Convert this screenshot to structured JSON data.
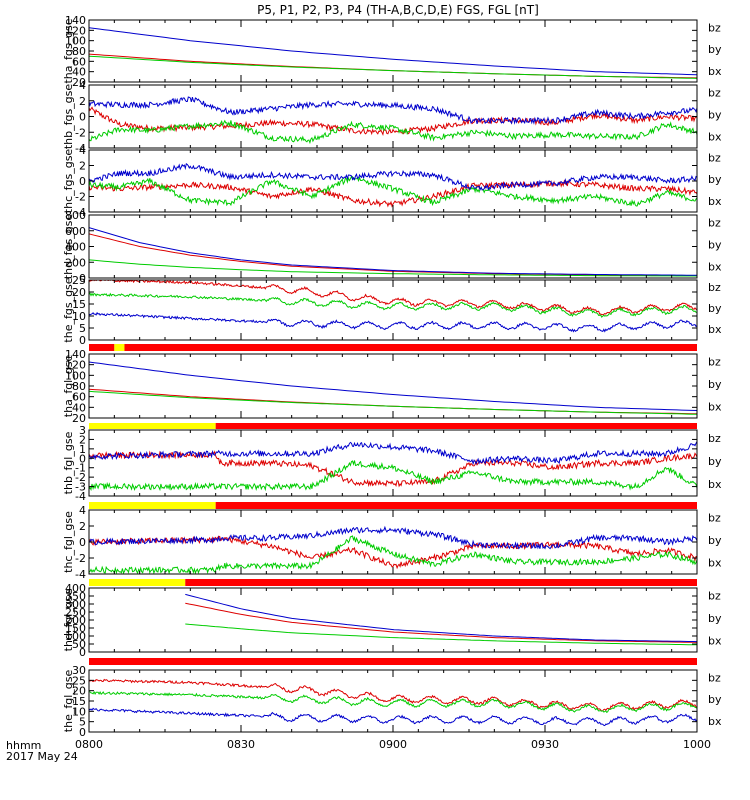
{
  "title": "P5, P1, P2, P3, P4 (TH-A,B,C,D,E) FGS, FGL [nT]",
  "time_axis": {
    "label_line1": "hhmm",
    "label_line2": "2017 May 24",
    "ticks": [
      "0800",
      "0830",
      "0900",
      "0930",
      "1000"
    ],
    "range_minutes": [
      0,
      120
    ]
  },
  "component_labels": [
    "bz",
    "by",
    "bx"
  ],
  "colors": {
    "bz": "#dd0000",
    "by": "#00cc00",
    "bx": "#0000cc",
    "bar_red": "#ff0000",
    "bar_yellow": "#ffff00",
    "bar_black": "#000000"
  },
  "status_bars": [
    {
      "after_panel": 4,
      "segments": [
        {
          "from": 0,
          "to": 5,
          "color": "red"
        },
        {
          "from": 5,
          "to": 7,
          "color": "yellow"
        },
        {
          "from": 7,
          "to": 120,
          "color": "red"
        }
      ]
    },
    {
      "after_panel": 5,
      "segments": [
        {
          "from": 0,
          "to": 25,
          "color": "yellow"
        },
        {
          "from": 25,
          "to": 120,
          "color": "red"
        }
      ]
    },
    {
      "after_panel": 6,
      "segments": [
        {
          "from": 0,
          "to": 25,
          "color": "yellow"
        },
        {
          "from": 25,
          "to": 120,
          "color": "red"
        }
      ]
    },
    {
      "after_panel": 7,
      "segments": [
        {
          "from": 0,
          "to": 19,
          "color": "yellow"
        },
        {
          "from": 19,
          "to": 120,
          "color": "red"
        }
      ]
    },
    {
      "after_panel": 8,
      "segments": [
        {
          "from": 0,
          "to": 120,
          "color": "red"
        }
      ]
    }
  ],
  "chart_data": [
    {
      "type": "line",
      "ylabel": "tha_fgs_gse",
      "ylim": [
        20,
        140
      ],
      "yticks": [
        20,
        40,
        60,
        80,
        100,
        120,
        140
      ],
      "style": "smooth",
      "series": [
        {
          "name": "bz",
          "x": [
            0,
            20,
            40,
            60,
            80,
            100,
            120
          ],
          "values": [
            74,
            60,
            50,
            42,
            36,
            31,
            28
          ]
        },
        {
          "name": "by",
          "x": [
            0,
            20,
            40,
            60,
            80,
            100,
            120
          ],
          "values": [
            70,
            58,
            49,
            42,
            36,
            31,
            27
          ]
        },
        {
          "name": "bx",
          "x": [
            0,
            20,
            40,
            60,
            80,
            100,
            120
          ],
          "values": [
            125,
            100,
            80,
            64,
            51,
            40,
            34
          ]
        }
      ]
    },
    {
      "type": "line",
      "ylabel": "thb_fgs_gse",
      "ylim": [
        -4,
        4
      ],
      "yticks": [
        -4,
        -2,
        0,
        2,
        4
      ],
      "style": "noisy",
      "series": [
        {
          "name": "bz",
          "x": [
            0,
            6,
            12,
            20,
            28,
            36,
            44,
            52,
            60,
            68,
            76,
            84,
            92,
            100,
            108,
            114,
            120
          ],
          "values": [
            1.0,
            -1.0,
            -1.5,
            -1.4,
            -1.2,
            -0.8,
            -1.0,
            -1.8,
            -2.0,
            -1.5,
            -0.5,
            -0.5,
            -0.8,
            0.2,
            -0.5,
            0.0,
            -0.3
          ]
        },
        {
          "name": "by",
          "x": [
            0,
            6,
            12,
            20,
            28,
            36,
            44,
            52,
            60,
            68,
            76,
            84,
            92,
            100,
            108,
            114,
            120
          ],
          "values": [
            -3.0,
            -1.6,
            -1.8,
            -1.2,
            -0.8,
            -2.7,
            -3.0,
            -1.0,
            -1.5,
            -2.7,
            -2.0,
            -2.5,
            -2.3,
            -2.5,
            -2.6,
            -1.0,
            -2.0
          ]
        },
        {
          "name": "bx",
          "x": [
            0,
            6,
            12,
            20,
            28,
            36,
            44,
            52,
            60,
            68,
            76,
            84,
            92,
            100,
            108,
            114,
            120
          ],
          "values": [
            1.6,
            1.5,
            1.5,
            2.2,
            0.5,
            1.0,
            1.5,
            1.6,
            1.4,
            1.0,
            -0.6,
            -0.5,
            -0.5,
            0.5,
            0.0,
            0.5,
            0.8
          ]
        }
      ]
    },
    {
      "type": "line",
      "ylabel": "thc_fgs_gse",
      "ylim": [
        -4,
        4
      ],
      "yticks": [
        -4,
        -2,
        0,
        2,
        4
      ],
      "style": "noisy",
      "series": [
        {
          "name": "bz",
          "x": [
            0,
            6,
            12,
            20,
            28,
            36,
            44,
            52,
            60,
            68,
            76,
            84,
            92,
            100,
            108,
            114,
            120
          ],
          "values": [
            -0.8,
            -1.0,
            -0.8,
            -0.5,
            -0.8,
            -2.0,
            -1.0,
            -2.5,
            -3.0,
            -2.0,
            -0.6,
            -0.5,
            -0.3,
            -0.5,
            -1.0,
            -1.0,
            -1.5
          ]
        },
        {
          "name": "by",
          "x": [
            0,
            6,
            12,
            20,
            28,
            36,
            44,
            52,
            60,
            68,
            76,
            84,
            92,
            100,
            108,
            114,
            120
          ],
          "values": [
            -0.5,
            -0.8,
            0.0,
            -2.5,
            -2.8,
            0.0,
            -2.0,
            0.5,
            -1.0,
            -2.8,
            -1.0,
            -2.0,
            -2.5,
            -2.0,
            -3.0,
            -1.5,
            -2.5
          ]
        },
        {
          "name": "bx",
          "x": [
            0,
            6,
            12,
            20,
            28,
            36,
            44,
            52,
            60,
            68,
            76,
            84,
            92,
            100,
            108,
            114,
            120
          ],
          "values": [
            0.0,
            1.0,
            1.0,
            2.0,
            0.5,
            0.8,
            0.5,
            0.5,
            1.0,
            0.8,
            -1.0,
            -0.5,
            -0.3,
            0.5,
            0.5,
            0.0,
            0.3
          ]
        }
      ]
    },
    {
      "type": "line",
      "ylabel": "thd_fgs_gse",
      "ylim": [
        0,
        800
      ],
      "yticks": [
        0,
        200,
        400,
        600,
        800
      ],
      "style": "smooth",
      "series": [
        {
          "name": "bz",
          "x": [
            0,
            10,
            20,
            30,
            40,
            60,
            80,
            100,
            120
          ],
          "values": [
            560,
            400,
            290,
            210,
            150,
            85,
            55,
            40,
            30
          ]
        },
        {
          "name": "by",
          "x": [
            0,
            10,
            20,
            30,
            40,
            60,
            80,
            100,
            120
          ],
          "values": [
            230,
            175,
            135,
            105,
            80,
            55,
            40,
            30,
            25
          ]
        },
        {
          "name": "bx",
          "x": [
            0,
            10,
            20,
            30,
            40,
            60,
            80,
            100,
            120
          ],
          "values": [
            640,
            450,
            320,
            230,
            165,
            95,
            60,
            45,
            35
          ]
        }
      ]
    },
    {
      "type": "line",
      "ylabel": "the_fgs_gse",
      "ylim": [
        0,
        25
      ],
      "yticks": [
        0,
        5,
        10,
        15,
        20,
        25
      ],
      "style": "wavy",
      "series": [
        {
          "name": "bz",
          "x": [
            0,
            20,
            40,
            60,
            80,
            100,
            120
          ],
          "values": [
            25,
            24,
            21,
            16,
            15,
            12,
            14
          ]
        },
        {
          "name": "by",
          "x": [
            0,
            20,
            40,
            60,
            80,
            100,
            120
          ],
          "values": [
            19,
            18,
            16,
            14,
            14,
            11,
            13
          ]
        },
        {
          "name": "bx",
          "x": [
            0,
            20,
            40,
            60,
            80,
            100,
            120
          ],
          "values": [
            11,
            9,
            7,
            6,
            6,
            5,
            7
          ]
        }
      ]
    },
    {
      "type": "line",
      "ylabel": "tha_fgl_gse",
      "ylim": [
        20,
        140
      ],
      "yticks": [
        20,
        40,
        60,
        80,
        100,
        120,
        140
      ],
      "style": "smooth",
      "series": [
        {
          "name": "bz",
          "x": [
            0,
            20,
            40,
            60,
            80,
            100,
            120
          ],
          "values": [
            74,
            60,
            50,
            42,
            36,
            31,
            28
          ]
        },
        {
          "name": "by",
          "x": [
            0,
            20,
            40,
            60,
            80,
            100,
            120
          ],
          "values": [
            70,
            58,
            49,
            42,
            36,
            31,
            27
          ]
        },
        {
          "name": "bx",
          "x": [
            0,
            20,
            40,
            60,
            80,
            100,
            120
          ],
          "values": [
            125,
            100,
            80,
            64,
            51,
            40,
            34
          ]
        }
      ]
    },
    {
      "type": "line",
      "ylabel": "thb_fgl_gse",
      "ylim": [
        -4,
        3
      ],
      "yticks": [
        -4,
        -3,
        -2,
        -1,
        0,
        1,
        2,
        3
      ],
      "style": "noisy",
      "series": [
        {
          "name": "bz",
          "x": [
            0,
            25,
            26,
            36,
            44,
            52,
            60,
            68,
            76,
            84,
            92,
            100,
            108,
            114,
            120
          ],
          "values": [
            0.3,
            0.4,
            -0.5,
            -0.5,
            -0.8,
            -2.5,
            -2.7,
            -2.5,
            -0.5,
            -0.5,
            -1.0,
            -0.5,
            -0.5,
            0.0,
            0.3
          ]
        },
        {
          "name": "by",
          "x": [
            0,
            25,
            26,
            36,
            44,
            52,
            60,
            68,
            76,
            84,
            92,
            100,
            108,
            114,
            120
          ],
          "values": [
            -3.0,
            -3.0,
            -3.0,
            -3.0,
            -3.0,
            -0.5,
            -1.0,
            -2.5,
            -1.5,
            -2.5,
            -2.5,
            -2.5,
            -3.0,
            -1.0,
            -3.0
          ]
        },
        {
          "name": "bx",
          "x": [
            0,
            25,
            26,
            36,
            44,
            52,
            60,
            68,
            76,
            84,
            92,
            100,
            108,
            114,
            120
          ],
          "values": [
            0.2,
            0.5,
            0.5,
            0.5,
            0.5,
            1.5,
            1.2,
            0.8,
            -0.3,
            0.0,
            -0.3,
            0.5,
            0.5,
            0.5,
            1.5
          ]
        }
      ]
    },
    {
      "type": "line",
      "ylabel": "thc_fgl_gse",
      "ylim": [
        -4,
        4
      ],
      "yticks": [
        -4,
        -2,
        0,
        2,
        4
      ],
      "style": "noisy",
      "series": [
        {
          "name": "bz",
          "x": [
            0,
            25,
            26,
            36,
            44,
            52,
            60,
            68,
            76,
            84,
            92,
            100,
            108,
            114,
            120
          ],
          "values": [
            0.0,
            0.3,
            0.5,
            -0.5,
            -2.0,
            -1.0,
            -3.0,
            -2.0,
            -0.5,
            -0.5,
            -0.3,
            -0.5,
            -1.5,
            -1.0,
            -2.0
          ]
        },
        {
          "name": "by",
          "x": [
            0,
            25,
            26,
            36,
            44,
            52,
            60,
            68,
            76,
            84,
            92,
            100,
            108,
            114,
            120
          ],
          "values": [
            -3.5,
            -3.5,
            -3.0,
            -3.0,
            -3.0,
            0.5,
            -1.5,
            -2.8,
            -1.5,
            -2.5,
            -2.5,
            -2.5,
            -2.0,
            -1.5,
            -2.5
          ]
        },
        {
          "name": "bx",
          "x": [
            0,
            25,
            26,
            36,
            44,
            52,
            60,
            68,
            76,
            84,
            92,
            100,
            108,
            114,
            120
          ],
          "values": [
            0.0,
            0.3,
            0.5,
            0.5,
            0.8,
            1.5,
            1.5,
            1.0,
            -0.3,
            -0.5,
            -0.5,
            0.5,
            0.5,
            0.0,
            0.5
          ]
        }
      ]
    },
    {
      "type": "line",
      "ylabel": "thd_fgl_gse",
      "ylim": [
        0,
        400
      ],
      "yticks": [
        0,
        50,
        100,
        150,
        200,
        250,
        300,
        350,
        400
      ],
      "style": "smooth",
      "series": [
        {
          "name": "bz",
          "x": [
            19,
            30,
            40,
            60,
            80,
            100,
            120
          ],
          "values": [
            305,
            235,
            185,
            125,
            90,
            70,
            60
          ]
        },
        {
          "name": "by",
          "x": [
            19,
            30,
            40,
            60,
            80,
            100,
            120
          ],
          "values": [
            175,
            145,
            120,
            90,
            70,
            55,
            45
          ]
        },
        {
          "name": "bx",
          "x": [
            19,
            30,
            40,
            60,
            80,
            100,
            120
          ],
          "values": [
            360,
            270,
            210,
            140,
            100,
            75,
            65
          ]
        }
      ]
    },
    {
      "type": "line",
      "ylabel": "the_fgl_gse",
      "ylim": [
        0,
        30
      ],
      "yticks": [
        0,
        5,
        10,
        15,
        20,
        25,
        30
      ],
      "style": "wavy",
      "series": [
        {
          "name": "bz",
          "x": [
            0,
            20,
            40,
            60,
            80,
            100,
            120
          ],
          "values": [
            25,
            24,
            21,
            16,
            15,
            12,
            14
          ]
        },
        {
          "name": "by",
          "x": [
            0,
            20,
            40,
            60,
            80,
            100,
            120
          ],
          "values": [
            19,
            18,
            16,
            14,
            14,
            11,
            13
          ]
        },
        {
          "name": "bx",
          "x": [
            0,
            20,
            40,
            60,
            80,
            100,
            120
          ],
          "values": [
            11,
            9,
            7,
            6,
            6,
            5,
            7
          ]
        }
      ]
    }
  ]
}
